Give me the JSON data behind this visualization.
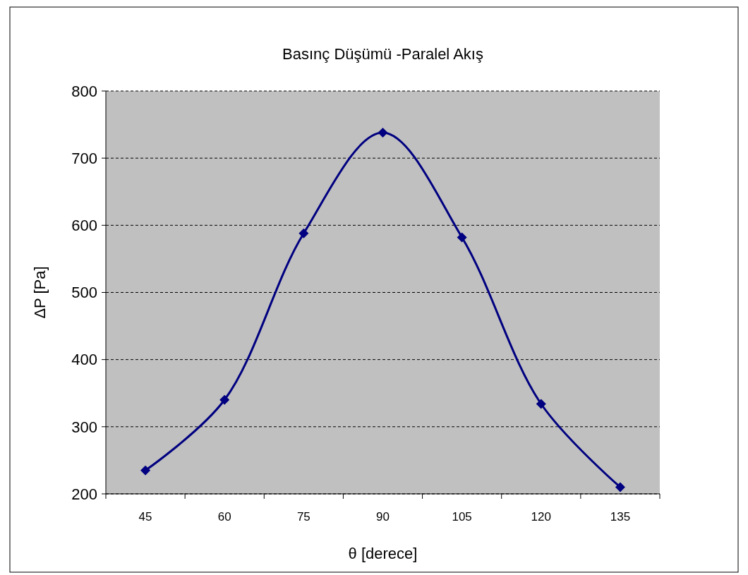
{
  "chart_data": {
    "type": "line",
    "title": "Basınç Düşümü -Paralel Akış",
    "xlabel": "θ [derece]",
    "ylabel": "ΔP [Pa]",
    "categories": [
      "45",
      "60",
      "75",
      "90",
      "105",
      "120",
      "135"
    ],
    "series": [
      {
        "color": "#000080",
        "values": [
          235,
          340,
          588,
          738,
          582,
          334,
          210
        ]
      }
    ],
    "ylim": [
      200,
      800
    ],
    "yticks": [
      200,
      300,
      400,
      500,
      600,
      700,
      800
    ],
    "grid": "y",
    "marker": "diamond",
    "line_style": "solid"
  }
}
